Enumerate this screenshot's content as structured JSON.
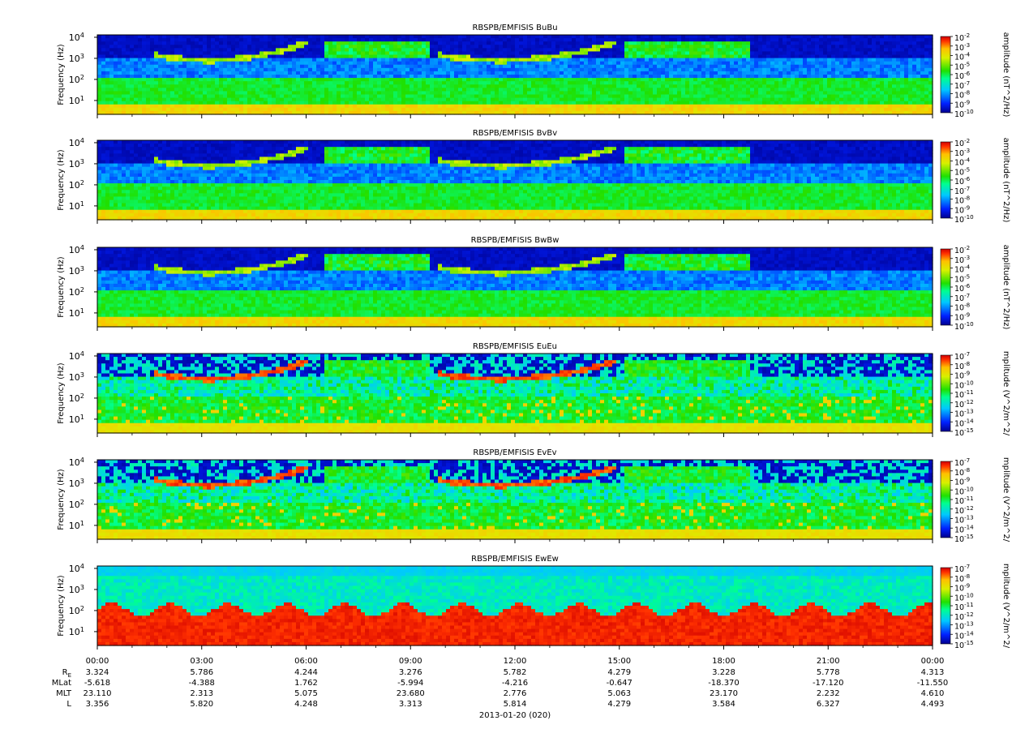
{
  "figure": {
    "date_label": "2013-01-20 (020)"
  },
  "chart_data": [
    {
      "type": "heatmap",
      "title": "RBSPB/EMFISIS  BuBu",
      "ylabel": "Frequency (Hz)",
      "y_scale": "log",
      "yticks": [
        "10^1",
        "10^2",
        "10^3",
        "10^4"
      ],
      "colorbar_label": "amplitude (nT^2/Hz)",
      "colorbar_scale": "log",
      "colorbar_range": [
        1e-10,
        0.01
      ],
      "colorbar_ticks": [
        "10^-2",
        "10^-3",
        "10^-4",
        "10^-5",
        "10^-6",
        "10^-7",
        "10^-8",
        "10^-9",
        "10^-10"
      ]
    },
    {
      "type": "heatmap",
      "title": "RBSPB/EMFISIS  BvBv",
      "ylabel": "Frequency (Hz)",
      "y_scale": "log",
      "yticks": [
        "10^1",
        "10^2",
        "10^3",
        "10^4"
      ],
      "colorbar_label": "amplitude (nT^2/Hz)",
      "colorbar_scale": "log",
      "colorbar_range": [
        1e-10,
        0.01
      ],
      "colorbar_ticks": [
        "10^-2",
        "10^-3",
        "10^-4",
        "10^-5",
        "10^-6",
        "10^-7",
        "10^-8",
        "10^-9",
        "10^-10"
      ]
    },
    {
      "type": "heatmap",
      "title": "RBSPB/EMFISIS  BwBw",
      "ylabel": "Frequency (Hz)",
      "y_scale": "log",
      "yticks": [
        "10^1",
        "10^2",
        "10^3",
        "10^4"
      ],
      "colorbar_label": "amplitude (nT^2/Hz)",
      "colorbar_scale": "log",
      "colorbar_range": [
        1e-10,
        0.01
      ],
      "colorbar_ticks": [
        "10^-2",
        "10^-3",
        "10^-4",
        "10^-5",
        "10^-6",
        "10^-7",
        "10^-8",
        "10^-9",
        "10^-10"
      ]
    },
    {
      "type": "heatmap",
      "title": "RBSPB/EMFISIS  EuEu",
      "ylabel": "Frequency (Hz)",
      "y_scale": "log",
      "yticks": [
        "10^1",
        "10^2",
        "10^3",
        "10^4"
      ],
      "colorbar_label": "mplitude (V^2/m^2/",
      "colorbar_scale": "log",
      "colorbar_range": [
        1e-15,
        1e-07
      ],
      "colorbar_ticks": [
        "10^-7",
        "10^-8",
        "10^-9",
        "10^-10",
        "10^-11",
        "10^-12",
        "10^-13",
        "10^-14",
        "10^-15"
      ]
    },
    {
      "type": "heatmap",
      "title": "RBSPB/EMFISIS  EvEv",
      "ylabel": "Frequency (Hz)",
      "y_scale": "log",
      "yticks": [
        "10^1",
        "10^2",
        "10^3",
        "10^4"
      ],
      "colorbar_label": "mplitude (V^2/m^2/",
      "colorbar_scale": "log",
      "colorbar_range": [
        1e-15,
        1e-07
      ],
      "colorbar_ticks": [
        "10^-7",
        "10^-8",
        "10^-9",
        "10^-10",
        "10^-11",
        "10^-12",
        "10^-13",
        "10^-14",
        "10^-15"
      ]
    },
    {
      "type": "heatmap",
      "title": "RBSPB/EMFISIS  EwEw",
      "ylabel": "Frequency (Hz)",
      "y_scale": "log",
      "yticks": [
        "10^1",
        "10^2",
        "10^3",
        "10^4"
      ],
      "colorbar_label": "mplitude (V^2/m^2/",
      "colorbar_scale": "log",
      "colorbar_range": [
        1e-15,
        1e-07
      ],
      "colorbar_ticks": [
        "10^-7",
        "10^-8",
        "10^-9",
        "10^-10",
        "10^-11",
        "10^-12",
        "10^-13",
        "10^-14",
        "10^-15"
      ]
    }
  ],
  "x_axis": {
    "tick_labels": [
      "00:00",
      "03:00",
      "06:00",
      "09:00",
      "12:00",
      "15:00",
      "18:00",
      "21:00",
      "00:00"
    ],
    "ephemeris": [
      {
        "label": "R_E",
        "values": [
          "3.324",
          "5.786",
          "4.244",
          "3.276",
          "5.782",
          "4.279",
          "3.228",
          "5.778",
          "4.313"
        ]
      },
      {
        "label": "MLat",
        "values": [
          "-5.618",
          "-4.388",
          "1.762",
          "-5.994",
          "-4.216",
          "-0.647",
          "-18.370",
          "-17.120",
          "-11.550"
        ]
      },
      {
        "label": "MLT",
        "values": [
          "23.110",
          "2.313",
          "5.075",
          "23.680",
          "2.776",
          "5.063",
          "23.170",
          "2.232",
          "4.610"
        ]
      },
      {
        "label": "L",
        "values": [
          "3.356",
          "5.820",
          "4.248",
          "3.313",
          "5.814",
          "4.279",
          "3.584",
          "6.327",
          "4.493"
        ]
      }
    ]
  }
}
